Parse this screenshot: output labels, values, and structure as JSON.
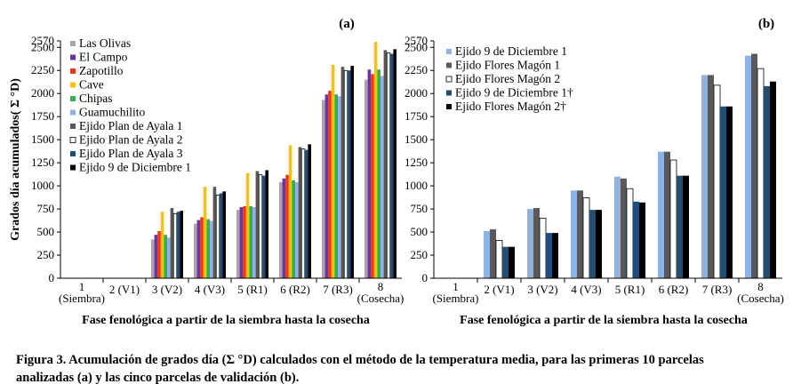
{
  "figure": {
    "caption_line1": "Figura 3. Acumulación de grados día (Σ °D) calculados con  el método de la temperatura media, para las primeras 10 parcelas",
    "caption_line2": "analizadas (a) y las cinco parcelas de validación (b)."
  },
  "chart_data": [
    {
      "type": "bar",
      "panel_label": "(a)",
      "ylabel": "Grados día acumulados( Σ °D)",
      "xlabel": "Fase fenológica a partir de la siembra hasta la cosecha",
      "ylim": [
        0,
        2570
      ],
      "yticks": [
        0,
        250,
        500,
        750,
        1000,
        1250,
        1500,
        1750,
        2000,
        2250,
        2500,
        2570
      ],
      "legend_position": "top-left",
      "categories": [
        "1 (Siembra)",
        "2 (V1)",
        "3 (V2)",
        "4 (V3)",
        "5 (R1)",
        "6 (R2)",
        "7 (R3)",
        "8 (Cosecha)"
      ],
      "series": [
        {
          "name": "Las Olivas",
          "color": "#a6a6a6",
          "values": [
            0,
            0,
            420,
            590,
            740,
            1040,
            1930,
            2150
          ]
        },
        {
          "name": "El Campo",
          "color": "#7030a0",
          "values": [
            0,
            0,
            470,
            630,
            770,
            1080,
            1990,
            2260
          ]
        },
        {
          "name": "Zapotillo",
          "color": "#ff3300",
          "values": [
            0,
            0,
            510,
            660,
            780,
            1120,
            2030,
            2210
          ]
        },
        {
          "name": "Cave",
          "color": "#ffc000",
          "values": [
            0,
            0,
            720,
            990,
            1140,
            1440,
            2310,
            2560
          ]
        },
        {
          "name": "Chipas",
          "color": "#2db34a",
          "values": [
            0,
            0,
            470,
            640,
            780,
            1060,
            1990,
            2260
          ]
        },
        {
          "name": "Guamuchilito",
          "color": "#8db3e2",
          "values": [
            0,
            0,
            440,
            620,
            770,
            1040,
            1970,
            2190
          ]
        },
        {
          "name": "Ejido Plan de Ayala 1",
          "color": "#595959",
          "values": [
            0,
            0,
            760,
            990,
            1160,
            1420,
            2290,
            2470
          ]
        },
        {
          "name": "Ejido Plan de Ayala 2",
          "color": "#ffffff",
          "values": [
            0,
            0,
            700,
            900,
            1120,
            1400,
            2250,
            2440
          ]
        },
        {
          "name": "Ejido Plan de Ayala 3",
          "color": "#1f4e79",
          "values": [
            0,
            0,
            720,
            920,
            1110,
            1390,
            2250,
            2430
          ]
        },
        {
          "name": "Ejido 9 de Diciembre 1",
          "color": "#000000",
          "values": [
            0,
            0,
            730,
            940,
            1170,
            1450,
            2300,
            2480
          ]
        }
      ]
    },
    {
      "type": "bar",
      "panel_label": "(b)",
      "ylabel": "",
      "xlabel": "Fase fenológica a partir de la siembra hasta la cosecha",
      "ylim": [
        0,
        2570
      ],
      "yticks": [
        0,
        250,
        500,
        750,
        1000,
        1250,
        1500,
        1750,
        2000,
        2250,
        2500,
        2570
      ],
      "legend_position": "top-left",
      "categories": [
        "1 (Siembra)",
        "2 (V1)",
        "3 (V2)",
        "4 (V3)",
        "5 (R1)",
        "6 (R2)",
        "7 (R3)",
        "8 (Cosecha)"
      ],
      "series": [
        {
          "name": "Ejido 9 de Diciembre 1",
          "color": "#8db3e2",
          "values": [
            0,
            510,
            750,
            950,
            1100,
            1370,
            2200,
            2410
          ]
        },
        {
          "name": "Ejido Flores Magón 1",
          "color": "#595959",
          "values": [
            0,
            530,
            760,
            950,
            1080,
            1370,
            2200,
            2430
          ]
        },
        {
          "name": "Ejido Flores Magón 2",
          "color": "#ffffff",
          "values": [
            0,
            410,
            650,
            870,
            970,
            1280,
            2090,
            2270
          ]
        },
        {
          "name": "Ejido 9 de Diciembre 1†",
          "color": "#1f4e79",
          "values": [
            0,
            340,
            490,
            740,
            830,
            1110,
            1860,
            2080
          ]
        },
        {
          "name": "Ejido Flores Magón 2†",
          "color": "#000000",
          "values": [
            0,
            340,
            490,
            740,
            820,
            1110,
            1860,
            2130
          ]
        }
      ]
    }
  ]
}
